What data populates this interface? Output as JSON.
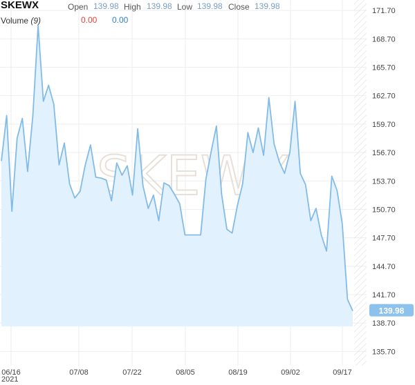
{
  "header": {
    "symbol": "SKEWX",
    "open_label": "Open",
    "open_value": "139.98",
    "high_label": "High",
    "high_value": "139.98",
    "low_label": "Low",
    "low_value": "139.98",
    "close_label": "Close",
    "close_value": "139.98",
    "volume_label": "Volume",
    "volume_period": "(9)",
    "volume_value_1": "0.00",
    "volume_value_2": "0.00"
  },
  "watermark": "SKEWX",
  "colors": {
    "line": "#82bbe8",
    "fill": "#e1f1fd",
    "grid": "#eeeeee",
    "price_tag": "#8dc2ec"
  },
  "chart_data": {
    "type": "area",
    "x_tick_labels": [
      "06/16",
      "07/08",
      "07/22",
      "08/05",
      "08/19",
      "09/02",
      "09/17"
    ],
    "x_year_label": "2021",
    "y_tick_labels": [
      "171.70",
      "168.70",
      "165.70",
      "162.70",
      "159.70",
      "156.70",
      "153.70",
      "150.70",
      "147.70",
      "144.70",
      "141.70",
      "138.70",
      "135.70"
    ],
    "ylim": [
      134.2,
      172.8
    ],
    "last_price_label": "139.98",
    "values": [
      155.8,
      160.6,
      150.5,
      158.2,
      160.3,
      154.7,
      160.6,
      170.1,
      162.1,
      163.8,
      161.8,
      155.4,
      157.7,
      153.4,
      151.9,
      152.6,
      155.4,
      157.5,
      154.1,
      154.0,
      153.8,
      151.6,
      155.6,
      154.3,
      155.3,
      152.2,
      159.2,
      153.2,
      150.8,
      152.2,
      149.5,
      153.5,
      153.2,
      152.3,
      151.3,
      148.0,
      148.0,
      148.0,
      148.0,
      153.9,
      156.8,
      159.5,
      152.3,
      148.6,
      148.2,
      151.1,
      153.4,
      158.8,
      156.7,
      159.3,
      156.4,
      162.5,
      157.6,
      155.7,
      154.5,
      156.7,
      162.1,
      154.5,
      153.3,
      149.5,
      150.8,
      148.0,
      146.3,
      154.2,
      152.7,
      149.2,
      141.2,
      139.98
    ]
  }
}
